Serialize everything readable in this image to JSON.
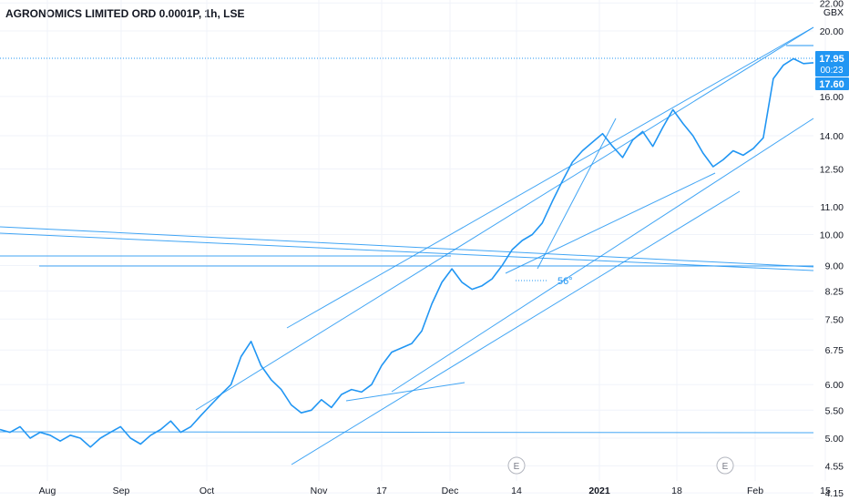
{
  "chart_data": {
    "type": "line",
    "title": "AGRONOMICS LIMITED ORD 0.0001P, 1h, LSE",
    "currency": "GBX",
    "y_scale": "log",
    "ylim": [
      4.1,
      22.5
    ],
    "y_ticks": [
      "22.00",
      "20.00",
      "16.00",
      "14.00",
      "12.50",
      "11.00",
      "10.00",
      "9.00",
      "8.25",
      "7.50",
      "6.75",
      "6.00",
      "5.50",
      "5.00",
      "4.55",
      "4.15"
    ],
    "x_tick_labels": [
      "Aug",
      "Sep",
      "Oct",
      "Nov",
      "17",
      "Dec",
      "14",
      "2021",
      "18",
      "Feb",
      "15"
    ],
    "price_label": "17.95",
    "countdown_label": "00:23",
    "prev_label": "17.60",
    "angle_label": "56°",
    "earnings_markers": [
      "E",
      "E"
    ],
    "series": [
      {
        "values": [
          5.15,
          5.1,
          5.2,
          5.0,
          5.1,
          5.05,
          4.95,
          5.05,
          5.0,
          4.85,
          5.0,
          5.1,
          5.2,
          5.0,
          4.9,
          5.05,
          5.15,
          5.3,
          5.1,
          5.2,
          5.4,
          5.6,
          5.8,
          6.0,
          6.6,
          6.95,
          6.4,
          6.1,
          5.9,
          5.6,
          5.45,
          5.5,
          5.7,
          5.55,
          5.8,
          5.9,
          5.85,
          6.0,
          6.4,
          6.7,
          6.8,
          6.9,
          7.2,
          7.9,
          8.5,
          8.9,
          8.5,
          8.3,
          8.4,
          8.6,
          9.0,
          9.5,
          9.8,
          10.0,
          10.4,
          11.2,
          12.0,
          12.8,
          13.3,
          13.7,
          14.1,
          13.5,
          13.0,
          13.8,
          14.2,
          13.5,
          14.4,
          15.3,
          14.6,
          14.0,
          13.2,
          12.6,
          12.9,
          13.3,
          13.1,
          13.4,
          13.9,
          17.0,
          17.8,
          18.2,
          17.9,
          17.95
        ],
        "color": "#2196f3"
      }
    ]
  }
}
